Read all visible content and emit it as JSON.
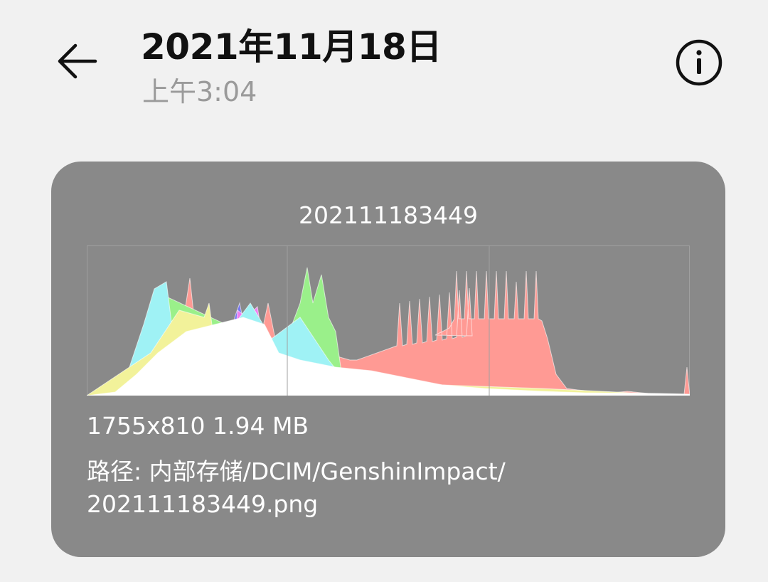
{
  "header": {
    "title": "2021年11月18日",
    "subtitle": "上午3:04",
    "back_icon": "arrow-left-icon",
    "info_icon": "info-circle-icon"
  },
  "card": {
    "file_name": "202111183449",
    "dimensions_size": "1755x810 1.94 MB",
    "path_line1": "路径: 内部存储/DCIM/GenshinImpact/",
    "path_line2": "202111183449.png",
    "histogram_colors": {
      "red": "#ff9a94",
      "green": "#9af08a",
      "cyan": "#9ff2f5",
      "yellow": "#f2f29a",
      "magenta": "#f07cf0",
      "blue": "#7878f0",
      "white": "#ffffff"
    }
  },
  "colors": {
    "background": "#f1f1f1",
    "card": "#898989",
    "text": "#111111",
    "subtext": "#9a9a9a"
  }
}
